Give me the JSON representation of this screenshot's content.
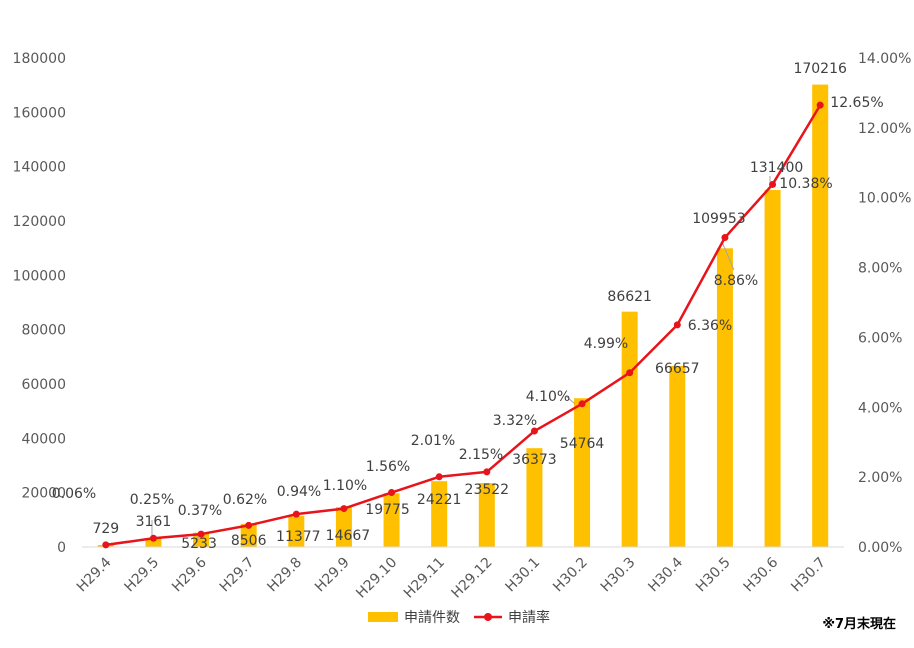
{
  "chart_data": {
    "type": "bar",
    "categories": [
      "H29.4",
      "H29.5",
      "H29.6",
      "H29.7",
      "H29.8",
      "H29.9",
      "H29.10",
      "H29.11",
      "H29.12",
      "H30.1",
      "H30.2",
      "H30.3",
      "H30.4",
      "H30.5",
      "H30.6",
      "H30.7"
    ],
    "series": [
      {
        "name": "申請件数",
        "type": "bar",
        "axis": "left",
        "values": [
          729,
          3161,
          5233,
          8506,
          11377,
          14667,
          19775,
          24221,
          23522,
          36373,
          54764,
          86621,
          66657,
          109953,
          131400,
          170216
        ],
        "labels": [
          "729",
          "3161",
          "5233",
          "8506",
          "11377",
          "14667",
          "19775",
          "24221",
          "23522",
          "36373",
          "54764",
          "86621",
          "66657",
          "109953",
          "131400",
          "170216"
        ]
      },
      {
        "name": "申請率",
        "type": "line",
        "axis": "right",
        "values": [
          0.06,
          0.25,
          0.37,
          0.62,
          0.94,
          1.1,
          1.56,
          2.01,
          2.15,
          3.32,
          4.1,
          4.99,
          6.36,
          8.86,
          10.38,
          12.65
        ],
        "labels": [
          "0.06%",
          "0.25%",
          "0.37%",
          "0.62%",
          "0.94%",
          "1.10%",
          "1.56%",
          "2.01%",
          "2.15%",
          "3.32%",
          "4.10%",
          "4.99%",
          "6.36%",
          "8.86%",
          "10.38%",
          "12.65%"
        ]
      }
    ],
    "y_left": {
      "min": 0,
      "max": 180000,
      "ticks": [
        "0",
        "20000",
        "40000",
        "60000",
        "80000",
        "100000",
        "120000",
        "140000",
        "160000",
        "180000"
      ]
    },
    "y_right": {
      "min": 0,
      "max": 14,
      "ticks": [
        "0.00%",
        "2.00%",
        "4.00%",
        "6.00%",
        "8.00%",
        "10.00%",
        "12.00%",
        "14.00%"
      ]
    },
    "grid": false,
    "legend_position": "bottom",
    "colors": {
      "bar": "#FFC000",
      "line": "#E8131B",
      "axis": "#D9D9D9",
      "text": "#404040"
    },
    "note": "※7月末現在"
  }
}
